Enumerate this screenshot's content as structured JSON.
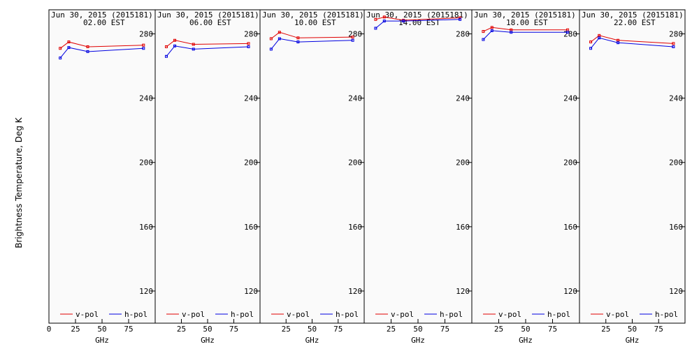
{
  "figure": {
    "ylabel": "Brightness Temperature, Deg K",
    "xlabel": "GHz",
    "legend": [
      "v-pol",
      "h-pol"
    ]
  },
  "colors": {
    "v": "#e00000",
    "h": "#0000e0",
    "panel_bg": "#fafafa",
    "frame": "#000000"
  },
  "chart_data": [
    {
      "type": "line",
      "title": "Jun 30, 2015 (2015181)",
      "subtitle": "02.00 EST",
      "x": [
        10.65,
        18.7,
        36.5,
        89.0
      ],
      "xlim": [
        0,
        100
      ],
      "ylim": [
        100,
        295
      ],
      "xticks": [
        0,
        25,
        50,
        75
      ],
      "xtick_labels": [
        "0",
        "25",
        "50",
        "75"
      ],
      "yticks": [
        120,
        160,
        200,
        240,
        280
      ],
      "series": [
        {
          "name": "v-pol",
          "values": [
            271,
            275,
            272,
            273
          ]
        },
        {
          "name": "h-pol",
          "values": [
            265,
            271.5,
            269,
            271
          ]
        }
      ]
    },
    {
      "type": "line",
      "title": "Jun 30, 2015 (2015181)",
      "subtitle": "06.00 EST",
      "x": [
        10.65,
        18.7,
        36.5,
        89.0
      ],
      "xlim": [
        0,
        100
      ],
      "ylim": [
        100,
        295
      ],
      "xticks": [
        0,
        25,
        50,
        75
      ],
      "xtick_labels": [
        "",
        "25",
        "50",
        "75"
      ],
      "yticks": [
        120,
        160,
        200,
        240,
        280
      ],
      "series": [
        {
          "name": "v-pol",
          "values": [
            272,
            276,
            273.5,
            274
          ]
        },
        {
          "name": "h-pol",
          "values": [
            266,
            272.5,
            270.5,
            272
          ]
        }
      ]
    },
    {
      "type": "line",
      "title": "Jun 30, 2015 (2015181)",
      "subtitle": "10.00 EST",
      "x": [
        10.65,
        18.7,
        36.5,
        89.0
      ],
      "xlim": [
        0,
        100
      ],
      "ylim": [
        100,
        295
      ],
      "xticks": [
        0,
        25,
        50,
        75
      ],
      "xtick_labels": [
        "",
        "25",
        "50",
        "75"
      ],
      "yticks": [
        120,
        160,
        200,
        240,
        280
      ],
      "series": [
        {
          "name": "v-pol",
          "values": [
            277,
            281,
            277.5,
            278
          ]
        },
        {
          "name": "h-pol",
          "values": [
            270.5,
            277,
            275,
            276
          ]
        }
      ]
    },
    {
      "type": "line",
      "title": "Jun 30, 2015 (2015181)",
      "subtitle": "14.00 EST",
      "x": [
        10.65,
        18.7,
        36.5,
        89.0
      ],
      "xlim": [
        0,
        100
      ],
      "ylim": [
        100,
        295
      ],
      "xticks": [
        0,
        25,
        50,
        75
      ],
      "xtick_labels": [
        "",
        "25",
        "50",
        "75"
      ],
      "yticks": [
        120,
        160,
        200,
        240,
        280
      ],
      "series": [
        {
          "name": "v-pol",
          "values": [
            289,
            290.5,
            288.5,
            290
          ]
        },
        {
          "name": "h-pol",
          "values": [
            283.5,
            288,
            288,
            289
          ]
        }
      ]
    },
    {
      "type": "line",
      "title": "Jun 30, 2015 (2015181)",
      "subtitle": "18.00 EST",
      "x": [
        10.65,
        18.7,
        36.5,
        89.0
      ],
      "xlim": [
        0,
        100
      ],
      "ylim": [
        100,
        295
      ],
      "xticks": [
        0,
        25,
        50,
        75
      ],
      "xtick_labels": [
        "",
        "25",
        "50",
        "75"
      ],
      "yticks": [
        120,
        160,
        200,
        240,
        280
      ],
      "series": [
        {
          "name": "v-pol",
          "values": [
            281.5,
            284,
            282.5,
            282.5
          ]
        },
        {
          "name": "h-pol",
          "values": [
            276.5,
            282,
            281,
            281
          ]
        }
      ]
    },
    {
      "type": "line",
      "title": "Jun 30, 2015 (2015181)",
      "subtitle": "22.00 EST",
      "x": [
        10.65,
        18.7,
        36.5,
        89.0
      ],
      "xlim": [
        0,
        100
      ],
      "ylim": [
        100,
        295
      ],
      "xticks": [
        0,
        25,
        50,
        75
      ],
      "xtick_labels": [
        "",
        "25",
        "50",
        "75"
      ],
      "yticks": [
        120,
        160,
        200,
        240,
        280
      ],
      "series": [
        {
          "name": "v-pol",
          "values": [
            275,
            279,
            276,
            274
          ]
        },
        {
          "name": "h-pol",
          "values": [
            271,
            277.5,
            274.5,
            272
          ]
        }
      ]
    }
  ]
}
